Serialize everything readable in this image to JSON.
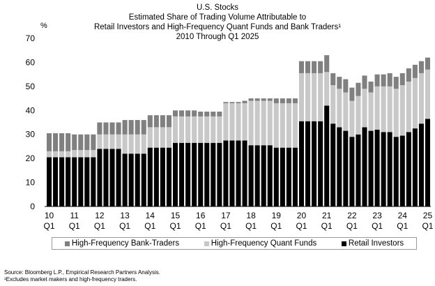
{
  "title_lines": [
    "U.S. Stocks",
    "Estimated Share of Trading Volume Attributable to",
    "Retail Investors and High-Frequency Quant Funds and Bank Traders¹",
    "2010 Through Q1 2025"
  ],
  "colors": {
    "retail": "#000000",
    "quant": "#c8c8c8",
    "bank": "#808080"
  },
  "chart_data": {
    "type": "bar",
    "stacked": true,
    "ylabel": "%",
    "ylim": [
      0,
      70
    ],
    "yticks": [
      0,
      10,
      20,
      30,
      40,
      50,
      60,
      70
    ],
    "grid": false,
    "xtick_labels": [
      {
        "year": "10",
        "quarter": "Q1",
        "index": 0
      },
      {
        "year": "11",
        "quarter": "Q1",
        "index": 4
      },
      {
        "year": "12",
        "quarter": "Q1",
        "index": 8
      },
      {
        "year": "13",
        "quarter": "Q1",
        "index": 12
      },
      {
        "year": "14",
        "quarter": "Q1",
        "index": 16
      },
      {
        "year": "15",
        "quarter": "Q1",
        "index": 20
      },
      {
        "year": "16",
        "quarter": "Q1",
        "index": 24
      },
      {
        "year": "17",
        "quarter": "Q1",
        "index": 28
      },
      {
        "year": "18",
        "quarter": "Q1",
        "index": 32
      },
      {
        "year": "19",
        "quarter": "Q1",
        "index": 36
      },
      {
        "year": "20",
        "quarter": "Q1",
        "index": 40
      },
      {
        "year": "21",
        "quarter": "Q1",
        "index": 44
      },
      {
        "year": "22",
        "quarter": "Q1",
        "index": 48
      },
      {
        "year": "23",
        "quarter": "Q1",
        "index": 52
      },
      {
        "year": "24",
        "quarter": "Q1",
        "index": 56
      },
      {
        "year": "25",
        "quarter": "Q1",
        "index": 60
      }
    ],
    "legend_position": "bottom",
    "series": [
      {
        "name": "Retail Investors",
        "color_key": "retail",
        "values": [
          20.5,
          20.5,
          20.5,
          20.5,
          20.5,
          20.5,
          20.5,
          20.5,
          24,
          24,
          24,
          24,
          22,
          22,
          22,
          22,
          24.5,
          24.5,
          24.5,
          24.5,
          26.5,
          26.5,
          26.5,
          26.5,
          26.5,
          26.5,
          26.5,
          26.5,
          27.5,
          27.5,
          27.5,
          27.5,
          25.5,
          25.5,
          25.5,
          25.5,
          24.5,
          24.5,
          24.5,
          24.5,
          35.5,
          35.5,
          35.5,
          35.5,
          42,
          34.5,
          33,
          31.5,
          29,
          30,
          33,
          31.5,
          32,
          31,
          31,
          29,
          29.5,
          31,
          32.5,
          34.5,
          36.5
        ]
      },
      {
        "name": "High-Frequency Quant Funds",
        "color_key": "quant",
        "values": [
          2.5,
          2.5,
          2.5,
          2.5,
          3,
          3,
          3,
          3,
          6,
          6,
          6,
          6,
          8,
          8,
          8,
          8,
          8.5,
          8.5,
          8.5,
          8.5,
          11,
          11,
          11,
          11,
          11,
          11,
          11,
          11,
          15.5,
          15.5,
          15.5,
          15.5,
          18.5,
          18.5,
          18.5,
          18.5,
          18.5,
          18.5,
          18.5,
          18.5,
          20,
          20,
          20,
          20,
          14,
          16,
          16,
          16,
          15,
          16,
          16,
          16,
          18,
          19,
          19,
          20,
          21,
          21,
          21,
          21,
          20.5
        ]
      },
      {
        "name": "High-Frequency Bank-Traders",
        "color_key": "bank",
        "values": [
          7.5,
          7.5,
          7.5,
          7.5,
          6.5,
          6.5,
          6.5,
          6.5,
          5,
          5,
          5,
          5,
          6,
          6,
          6,
          6,
          5,
          5,
          5,
          5,
          2.5,
          2.5,
          2.5,
          2.5,
          2,
          2,
          2,
          2,
          0.5,
          0.5,
          0.5,
          1,
          1,
          1,
          1,
          1,
          2,
          2,
          2,
          2,
          5,
          5,
          5,
          5,
          7,
          5,
          5,
          5.5,
          5.5,
          5.5,
          5.5,
          4.5,
          5,
          5,
          5.5,
          5,
          5,
          5.5,
          5.5,
          5,
          5
        ]
      }
    ]
  },
  "legend": [
    {
      "label": "High-Frequency Bank-Traders",
      "color_key": "bank"
    },
    {
      "label": "High-Frequency Quant Funds",
      "color_key": "quant"
    },
    {
      "label": "Retail Investors",
      "color_key": "retail"
    }
  ],
  "footnotes": [
    "Source: Bloomberg L.P., Empirical Research Partners Analysis.",
    "¹Excludes market makers and high-frequency traders."
  ]
}
